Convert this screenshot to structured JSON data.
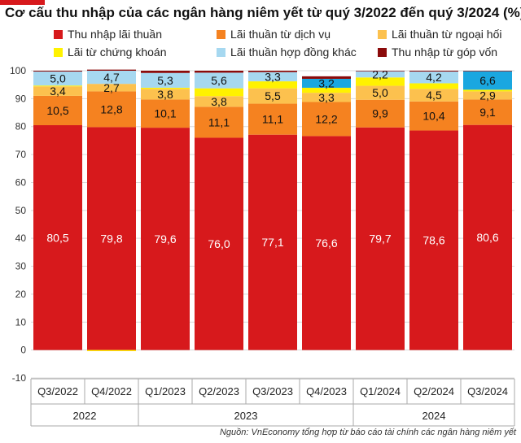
{
  "chart_data": {
    "type": "bar",
    "stacked": true,
    "title": "Cơ cấu thu nhập của các ngân hàng niêm yết từ quý 3/2022 đến quý 3/2024 (%)",
    "categories": [
      "Q3/2022",
      "Q4/2022",
      "Q1/2023",
      "Q2/2023",
      "Q3/2023",
      "Q4/2023",
      "Q1/2024",
      "Q2/2024",
      "Q3/2024"
    ],
    "year_groups": [
      {
        "label": "2022",
        "from": 0,
        "to": 1
      },
      {
        "label": "2023",
        "from": 2,
        "to": 5
      },
      {
        "label": "2024",
        "from": 6,
        "to": 8
      }
    ],
    "ylim": [
      -10,
      100
    ],
    "yticks": [
      -10,
      0,
      10,
      20,
      30,
      40,
      50,
      60,
      70,
      80,
      90,
      100
    ],
    "grid": true,
    "legend_position": "top",
    "series": [
      {
        "name": "Thu nhập lãi thuần",
        "color": "#d7191c",
        "values": [
          80.5,
          79.8,
          79.6,
          76.0,
          77.1,
          76.6,
          79.7,
          78.6,
          80.6
        ],
        "labels": [
          "80,5",
          "79,8",
          "79,6",
          "76,0",
          "77,1",
          "76,6",
          "79,7",
          "78,6",
          "80,6"
        ]
      },
      {
        "name": "Lãi thuần từ dịch vụ",
        "color": "#f58220",
        "values": [
          10.5,
          12.8,
          10.1,
          11.1,
          11.1,
          12.2,
          9.9,
          10.4,
          9.1
        ],
        "labels": [
          "10,5",
          "12,8",
          "10,1",
          "11,1",
          "11,1",
          "12,2",
          "9,9",
          "10,4",
          "9,1"
        ]
      },
      {
        "name": "Lãi thuần từ ngoại hối",
        "color": "#fcc14e",
        "values": [
          3.4,
          2.7,
          3.8,
          3.8,
          5.5,
          3.3,
          5.0,
          4.5,
          2.9
        ],
        "labels": [
          "3,4",
          "2,7",
          "3,8",
          "3,8",
          "5,5",
          "3,3",
          "5,0",
          "4,5",
          "2,9"
        ]
      },
      {
        "name": "Lãi từ chứng khoán",
        "color": "#fff200",
        "values": [
          0.3,
          -0.4,
          0.4,
          2.8,
          2.5,
          1.8,
          3.0,
          2.0,
          0.6
        ],
        "labels": [
          "",
          "",
          "",
          "",
          "",
          "",
          "",
          "",
          ""
        ]
      },
      {
        "name": "Lãi thuần hợp đồng khác",
        "color": "#a6d8f0",
        "values": [
          5.0,
          4.7,
          5.3,
          5.6,
          3.3,
          3.2,
          2.2,
          4.2,
          6.6
        ],
        "labels": [
          "5,0",
          "4,7",
          "5,3",
          "5,6",
          "3,3",
          "3,2",
          "2,2",
          "4,2",
          "6,6"
        ]
      },
      {
        "name": "Thu nhập từ góp vốn",
        "color": "#8b0a0a",
        "values": [
          0.3,
          0.4,
          0.8,
          0.7,
          0.5,
          0.9,
          0.2,
          0.3,
          0.2
        ],
        "labels": [
          "",
          "",
          "",
          "",
          "",
          "",
          "",
          "",
          ""
        ]
      }
    ],
    "emphasized_segments": [
      {
        "series": 4,
        "category": 5,
        "color": "#1aa7e0"
      },
      {
        "series": 4,
        "category": 8,
        "color": "#1aa7e0"
      }
    ],
    "source": "Nguồn: VnEconomy tổng hợp từ báo cáo tài chính các ngân hàng niêm yết"
  }
}
